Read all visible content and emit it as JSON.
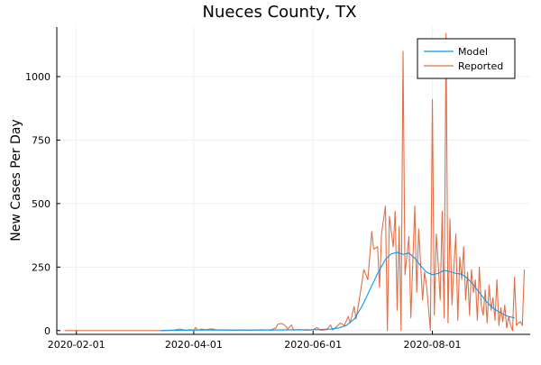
{
  "chart_data": {
    "type": "line",
    "title": "Nueces County, TX",
    "xlabel": "",
    "ylabel": "New Cases Per Day",
    "x_ticks": [
      "2020-02-01",
      "2020-04-01",
      "2020-06-01",
      "2020-08-01"
    ],
    "y_ticks": [
      0,
      250,
      500,
      750,
      1000
    ],
    "xlim": [
      "2020-01-22",
      "2020-09-20"
    ],
    "ylim": [
      -15,
      1195
    ],
    "grid": true,
    "legend_position": "top-right",
    "colors": {
      "model": "#009AF9",
      "reported": "#E26F46",
      "grid": "#ECECEC",
      "axis": "#000000"
    },
    "series": [
      {
        "name": "Model",
        "points": [
          [
            "2020-03-15",
            0
          ],
          [
            "2020-03-25",
            1
          ],
          [
            "2020-04-01",
            2
          ],
          [
            "2020-04-10",
            2
          ],
          [
            "2020-04-20",
            2
          ],
          [
            "2020-05-01",
            2
          ],
          [
            "2020-05-10",
            2
          ],
          [
            "2020-05-20",
            3
          ],
          [
            "2020-05-28",
            3
          ],
          [
            "2020-06-05",
            4
          ],
          [
            "2020-06-10",
            6
          ],
          [
            "2020-06-14",
            10
          ],
          [
            "2020-06-18",
            20
          ],
          [
            "2020-06-22",
            45
          ],
          [
            "2020-06-26",
            95
          ],
          [
            "2020-06-30",
            160
          ],
          [
            "2020-07-04",
            225
          ],
          [
            "2020-07-08",
            280
          ],
          [
            "2020-07-11",
            302
          ],
          [
            "2020-07-14",
            308
          ],
          [
            "2020-07-17",
            300
          ],
          [
            "2020-07-20",
            305
          ],
          [
            "2020-07-23",
            285
          ],
          [
            "2020-07-26",
            255
          ],
          [
            "2020-07-29",
            230
          ],
          [
            "2020-08-01",
            220
          ],
          [
            "2020-08-04",
            225
          ],
          [
            "2020-08-07",
            237
          ],
          [
            "2020-08-10",
            232
          ],
          [
            "2020-08-13",
            225
          ],
          [
            "2020-08-16",
            222
          ],
          [
            "2020-08-19",
            205
          ],
          [
            "2020-08-22",
            180
          ],
          [
            "2020-08-25",
            150
          ],
          [
            "2020-08-28",
            120
          ],
          [
            "2020-08-31",
            95
          ],
          [
            "2020-09-03",
            78
          ],
          [
            "2020-09-06",
            65
          ],
          [
            "2020-09-09",
            55
          ],
          [
            "2020-09-12",
            50
          ]
        ]
      },
      {
        "name": "Reported",
        "points": [
          [
            "2020-01-26",
            0
          ],
          [
            "2020-02-20",
            0
          ],
          [
            "2020-03-15",
            0
          ],
          [
            "2020-03-22",
            2
          ],
          [
            "2020-03-25",
            6
          ],
          [
            "2020-03-28",
            1
          ],
          [
            "2020-03-30",
            4
          ],
          [
            "2020-04-01",
            0
          ],
          [
            "2020-04-02",
            12
          ],
          [
            "2020-04-03",
            1
          ],
          [
            "2020-04-05",
            6
          ],
          [
            "2020-04-07",
            3
          ],
          [
            "2020-04-10",
            7
          ],
          [
            "2020-04-13",
            2
          ],
          [
            "2020-04-16",
            3
          ],
          [
            "2020-04-20",
            1
          ],
          [
            "2020-04-25",
            2
          ],
          [
            "2020-04-30",
            1
          ],
          [
            "2020-05-05",
            3
          ],
          [
            "2020-05-10",
            2
          ],
          [
            "2020-05-13",
            10
          ],
          [
            "2020-05-14",
            25
          ],
          [
            "2020-05-16",
            28
          ],
          [
            "2020-05-18",
            18
          ],
          [
            "2020-05-19",
            6
          ],
          [
            "2020-05-21",
            22
          ],
          [
            "2020-05-22",
            2
          ],
          [
            "2020-05-25",
            4
          ],
          [
            "2020-05-28",
            1
          ],
          [
            "2020-06-01",
            3
          ],
          [
            "2020-06-03",
            12
          ],
          [
            "2020-06-05",
            1
          ],
          [
            "2020-06-08",
            4
          ],
          [
            "2020-06-10",
            22
          ],
          [
            "2020-06-11",
            2
          ],
          [
            "2020-06-13",
            15
          ],
          [
            "2020-06-15",
            30
          ],
          [
            "2020-06-17",
            20
          ],
          [
            "2020-06-19",
            55
          ],
          [
            "2020-06-20",
            30
          ],
          [
            "2020-06-22",
            95
          ],
          [
            "2020-06-23",
            45
          ],
          [
            "2020-06-25",
            140
          ],
          [
            "2020-06-27",
            240
          ],
          [
            "2020-06-29",
            200
          ],
          [
            "2020-07-01",
            390
          ],
          [
            "2020-07-02",
            320
          ],
          [
            "2020-07-04",
            330
          ],
          [
            "2020-07-05",
            170
          ],
          [
            "2020-07-06",
            380
          ],
          [
            "2020-07-08",
            490
          ],
          [
            "2020-07-09",
            0
          ],
          [
            "2020-07-10",
            450
          ],
          [
            "2020-07-12",
            330
          ],
          [
            "2020-07-13",
            470
          ],
          [
            "2020-07-14",
            80
          ],
          [
            "2020-07-15",
            410
          ],
          [
            "2020-07-16",
            0
          ],
          [
            "2020-07-17",
            1100
          ],
          [
            "2020-07-18",
            220
          ],
          [
            "2020-07-20",
            370
          ],
          [
            "2020-07-21",
            50
          ],
          [
            "2020-07-23",
            490
          ],
          [
            "2020-07-24",
            150
          ],
          [
            "2020-07-25",
            400
          ],
          [
            "2020-07-27",
            120
          ],
          [
            "2020-07-28",
            230
          ],
          [
            "2020-07-29",
            180
          ],
          [
            "2020-07-31",
            0
          ],
          [
            "2020-08-01",
            910
          ],
          [
            "2020-08-02",
            60
          ],
          [
            "2020-08-03",
            380
          ],
          [
            "2020-08-04",
            260
          ],
          [
            "2020-08-05",
            120
          ],
          [
            "2020-08-06",
            470
          ],
          [
            "2020-08-07",
            50
          ],
          [
            "2020-08-08",
            1170
          ],
          [
            "2020-08-09",
            30
          ],
          [
            "2020-08-10",
            440
          ],
          [
            "2020-08-11",
            100
          ],
          [
            "2020-08-12",
            250
          ],
          [
            "2020-08-13",
            380
          ],
          [
            "2020-08-14",
            40
          ],
          [
            "2020-08-15",
            290
          ],
          [
            "2020-08-16",
            200
          ],
          [
            "2020-08-17",
            330
          ],
          [
            "2020-08-18",
            120
          ],
          [
            "2020-08-19",
            230
          ],
          [
            "2020-08-20",
            60
          ],
          [
            "2020-08-21",
            240
          ],
          [
            "2020-08-22",
            150
          ],
          [
            "2020-08-23",
            200
          ],
          [
            "2020-08-24",
            40
          ],
          [
            "2020-08-25",
            250
          ],
          [
            "2020-08-26",
            100
          ],
          [
            "2020-08-27",
            60
          ],
          [
            "2020-08-28",
            160
          ],
          [
            "2020-08-29",
            30
          ],
          [
            "2020-08-30",
            180
          ],
          [
            "2020-08-31",
            80
          ],
          [
            "2020-09-01",
            130
          ],
          [
            "2020-09-02",
            40
          ],
          [
            "2020-09-03",
            200
          ],
          [
            "2020-09-04",
            20
          ],
          [
            "2020-09-05",
            90
          ],
          [
            "2020-09-06",
            35
          ],
          [
            "2020-09-07",
            100
          ],
          [
            "2020-09-08",
            10
          ],
          [
            "2020-09-09",
            55
          ],
          [
            "2020-09-10",
            20
          ],
          [
            "2020-09-11",
            0
          ],
          [
            "2020-09-12",
            210
          ],
          [
            "2020-09-13",
            20
          ],
          [
            "2020-09-14",
            30
          ],
          [
            "2020-09-15",
            35
          ],
          [
            "2020-09-16",
            20
          ],
          [
            "2020-09-17",
            240
          ]
        ]
      }
    ]
  }
}
